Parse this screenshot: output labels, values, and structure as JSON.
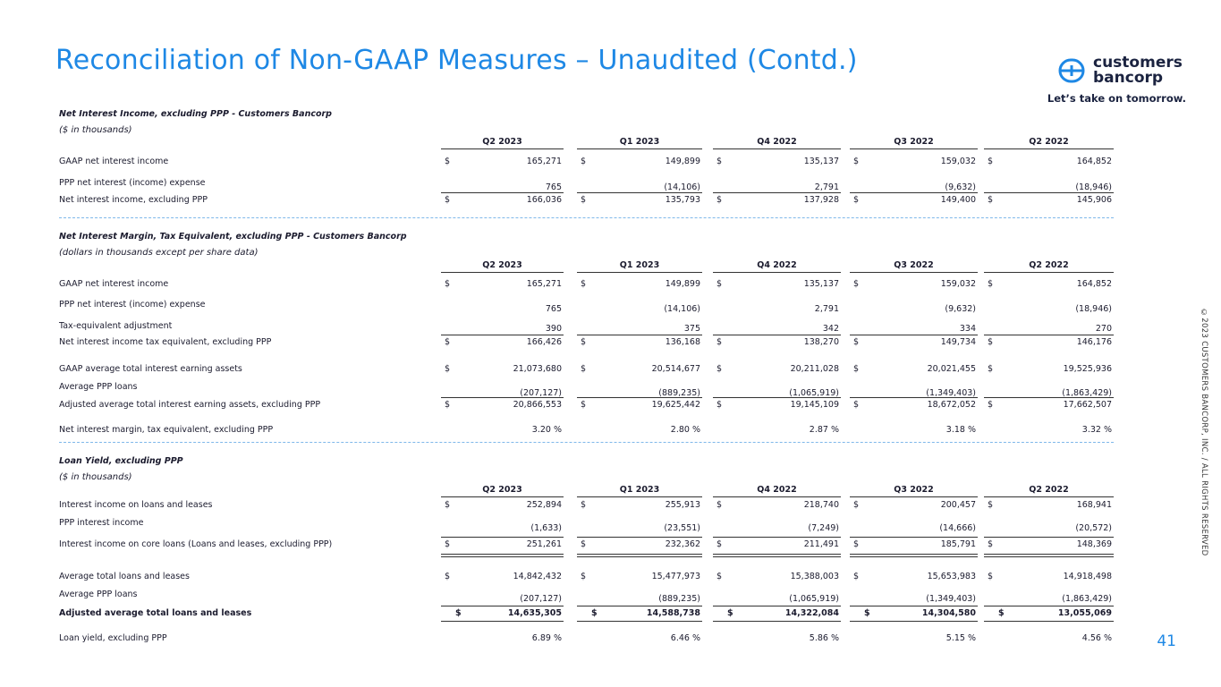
{
  "header": {
    "title": "Reconciliation of Non-GAAP Measures – Unaudited (Contd.)",
    "brand_line1": "customers",
    "brand_line2": "bancorp",
    "tagline": "Let’s take on tomorrow."
  },
  "currency": "$",
  "sections": [
    {
      "title": "Net Interest Income, excluding PPP - Customers Bancorp",
      "subtitle": "($ in thousands)",
      "columns": [
        "Q2 2023",
        "Q1 2023",
        "Q4 2022",
        "Q3 2022",
        "Q2 2022"
      ],
      "rows": [
        {
          "label": "GAAP net interest income",
          "dollar": true,
          "values": [
            "165,271",
            "149,899",
            "135,137",
            "159,032",
            "164,852"
          ]
        },
        {
          "label": "PPP net interest (income) expense",
          "dollar": false,
          "values": [
            "765",
            "(14,106)",
            "2,791",
            "(9,632)",
            "(18,946)"
          ]
        },
        {
          "label": "Net interest income, excluding PPP",
          "dollar": true,
          "values": [
            "166,036",
            "135,793",
            "137,928",
            "149,400",
            "145,906"
          ]
        }
      ]
    },
    {
      "title": "Net Interest Margin, Tax Equivalent, excluding PPP - Customers Bancorp",
      "subtitle": "(dollars in thousands except per share data)",
      "columns": [
        "Q2 2023",
        "Q1 2023",
        "Q4 2022",
        "Q3 2022",
        "Q2 2022"
      ],
      "rows": [
        {
          "label": "GAAP net interest income",
          "dollar": true,
          "values": [
            "165,271",
            "149,899",
            "135,137",
            "159,032",
            "164,852"
          ]
        },
        {
          "label": "PPP net interest (income) expense",
          "dollar": false,
          "values": [
            "765",
            "(14,106)",
            "2,791",
            "(9,632)",
            "(18,946)"
          ]
        },
        {
          "label": "Tax-equivalent adjustment",
          "dollar": false,
          "values": [
            "390",
            "375",
            "342",
            "334",
            "270"
          ]
        },
        {
          "label": "Net interest income tax equivalent, excluding PPP",
          "dollar": true,
          "values": [
            "166,426",
            "136,168",
            "138,270",
            "149,734",
            "146,176"
          ]
        },
        {
          "label": "GAAP average total interest earning assets",
          "dollar": true,
          "values": [
            "21,073,680",
            "20,514,677",
            "20,211,028",
            "20,021,455",
            "19,525,936"
          ]
        },
        {
          "label": "Average PPP loans",
          "dollar": false,
          "values": [
            "(207,127)",
            "(889,235)",
            "(1,065,919)",
            "(1,349,403)",
            "(1,863,429)"
          ]
        },
        {
          "label": "Adjusted average total interest earning assets, excluding PPP",
          "dollar": true,
          "values": [
            "20,866,553",
            "19,625,442",
            "19,145,109",
            "18,672,052",
            "17,662,507"
          ]
        },
        {
          "label": "Net interest margin, tax equivalent, excluding PPP",
          "dollar": false,
          "values": [
            "3.20 %",
            "2.80 %",
            "2.87 %",
            "3.18 %",
            "3.32 %"
          ]
        }
      ]
    },
    {
      "title": "Loan Yield, excluding PPP",
      "subtitle": "($ in thousands)",
      "columns": [
        "Q2 2023",
        "Q1 2023",
        "Q4 2022",
        "Q3 2022",
        "Q2 2022"
      ],
      "rows": [
        {
          "label": "Interest income on loans and leases",
          "dollar": true,
          "values": [
            "252,894",
            "255,913",
            "218,740",
            "200,457",
            "168,941"
          ]
        },
        {
          "label": "PPP interest income",
          "dollar": false,
          "values": [
            "(1,633)",
            "(23,551)",
            "(7,249)",
            "(14,666)",
            "(20,572)"
          ]
        },
        {
          "label": "Interest income on core loans (Loans and leases, excluding PPP)",
          "dollar": true,
          "values": [
            "251,261",
            "232,362",
            "211,491",
            "185,791",
            "148,369"
          ]
        },
        {
          "label": "Average total loans and leases",
          "dollar": true,
          "values": [
            "14,842,432",
            "15,477,973",
            "15,388,003",
            "15,653,983",
            "14,918,498"
          ]
        },
        {
          "label": "Average PPP loans",
          "dollar": false,
          "values": [
            "(207,127)",
            "(889,235)",
            "(1,065,919)",
            "(1,349,403)",
            "(1,863,429)"
          ]
        },
        {
          "label": "Adjusted average total loans and leases",
          "dollar": true,
          "values": [
            "14,635,305",
            "14,588,738",
            "14,322,084",
            "14,304,580",
            "13,055,069"
          ]
        },
        {
          "label": "Loan yield, excluding PPP",
          "dollar": false,
          "values": [
            "6.89 %",
            "6.46 %",
            "5.86 %",
            "5.15 %",
            "4.56 %"
          ]
        }
      ]
    }
  ],
  "footer": {
    "copyright": "©2023 CUSTOMERS BANCORP, INC. / ALL RIGHTS RESERVED",
    "page_number": "41"
  }
}
